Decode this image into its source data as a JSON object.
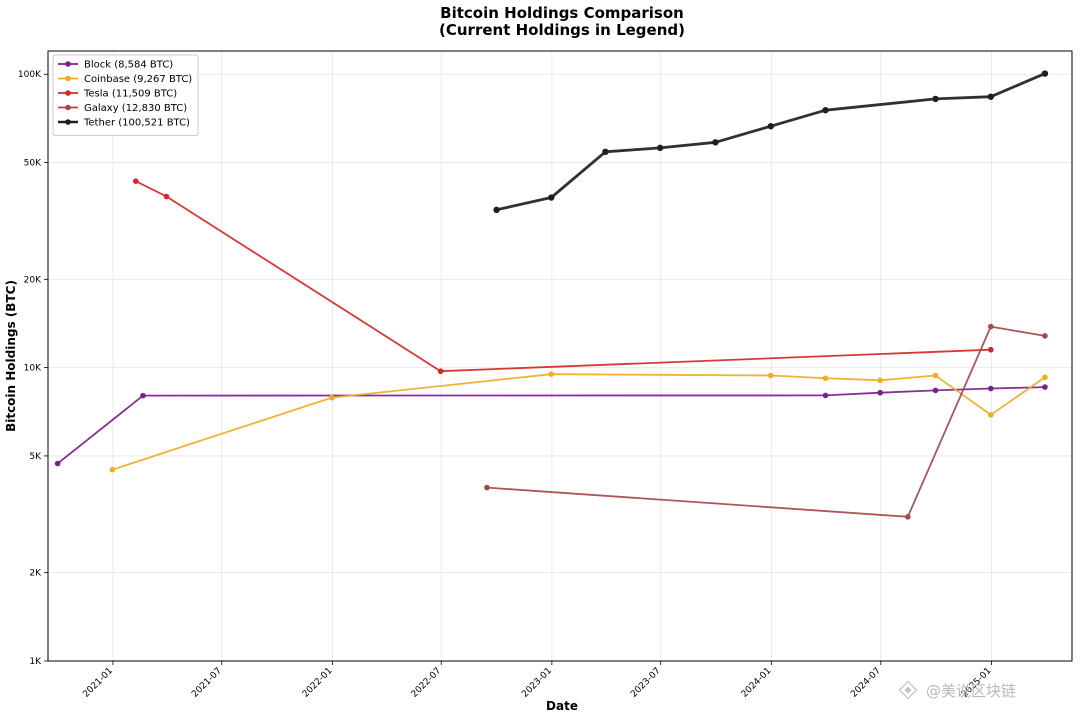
{
  "chart_data": {
    "type": "line",
    "title": "Bitcoin Holdings Comparison",
    "subtitle": "(Current Holdings in Legend)",
    "xlabel": "Date",
    "ylabel": "Bitcoin Holdings (BTC)",
    "y_scale": "log",
    "xlim": [
      "2020-09-15",
      "2025-05-15"
    ],
    "ylim": [
      1000,
      120000
    ],
    "x_ticks": [
      "2021-01",
      "2021-07",
      "2022-01",
      "2022-07",
      "2023-01",
      "2023-07",
      "2024-01",
      "2024-07",
      "2025-01"
    ],
    "y_ticks": [
      {
        "value": 1000,
        "label": "1K"
      },
      {
        "value": 2000,
        "label": "2K"
      },
      {
        "value": 5000,
        "label": "5K"
      },
      {
        "value": 10000,
        "label": "10K"
      },
      {
        "value": 20000,
        "label": "20K"
      },
      {
        "value": 50000,
        "label": "50K"
      },
      {
        "value": 100000,
        "label": "100K"
      }
    ],
    "grid": true,
    "legend_position": "top-left",
    "series": [
      {
        "name": "Block (8,584 BTC)",
        "color": "#7b1f8c",
        "points": [
          {
            "x": "2020-10-01",
            "y": 4709
          },
          {
            "x": "2021-02-20",
            "y": 8027
          },
          {
            "x": "2024-03-31",
            "y": 8038
          },
          {
            "x": "2024-06-30",
            "y": 8211
          },
          {
            "x": "2024-09-30",
            "y": 8363
          },
          {
            "x": "2024-12-31",
            "y": 8485
          },
          {
            "x": "2025-03-31",
            "y": 8584
          }
        ]
      },
      {
        "name": "Coinbase (9,267 BTC)",
        "color": "#f0ac25",
        "points": [
          {
            "x": "2020-12-31",
            "y": 4487
          },
          {
            "x": "2021-12-31",
            "y": 7900
          },
          {
            "x": "2022-12-31",
            "y": 9500
          },
          {
            "x": "2023-12-31",
            "y": 9400
          },
          {
            "x": "2024-03-31",
            "y": 9200
          },
          {
            "x": "2024-06-30",
            "y": 9050
          },
          {
            "x": "2024-09-30",
            "y": 9400
          },
          {
            "x": "2024-12-31",
            "y": 6900
          },
          {
            "x": "2025-03-31",
            "y": 9267
          }
        ]
      },
      {
        "name": "Tesla (11,509 BTC)",
        "color": "#d62728",
        "points": [
          {
            "x": "2021-02-08",
            "y": 43200
          },
          {
            "x": "2021-03-31",
            "y": 38300
          },
          {
            "x": "2022-06-30",
            "y": 9720
          },
          {
            "x": "2024-12-31",
            "y": 11509
          }
        ]
      },
      {
        "name": "Galaxy (12,830 BTC)",
        "color": "#a5484c",
        "points": [
          {
            "x": "2022-09-15",
            "y": 3900
          },
          {
            "x": "2024-08-15",
            "y": 3100
          },
          {
            "x": "2024-12-31",
            "y": 13800
          },
          {
            "x": "2025-03-31",
            "y": 12830
          }
        ]
      },
      {
        "name": "Tether (100,521 BTC)",
        "color": "#1f1f1f",
        "points": [
          {
            "x": "2022-10-01",
            "y": 34500
          },
          {
            "x": "2022-12-31",
            "y": 38000
          },
          {
            "x": "2023-03-31",
            "y": 54400
          },
          {
            "x": "2023-06-30",
            "y": 56100
          },
          {
            "x": "2023-09-30",
            "y": 58600
          },
          {
            "x": "2023-12-31",
            "y": 66500
          },
          {
            "x": "2024-03-31",
            "y": 75400
          },
          {
            "x": "2024-09-30",
            "y": 82400
          },
          {
            "x": "2024-12-31",
            "y": 83800
          },
          {
            "x": "2025-03-31",
            "y": 100521
          }
        ]
      }
    ]
  },
  "watermark": "@美说区块链"
}
